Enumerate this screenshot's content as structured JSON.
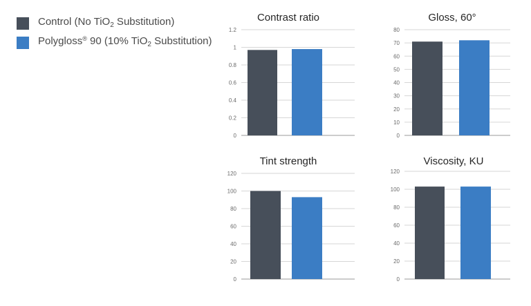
{
  "colors": {
    "control": "#474f5a",
    "polygloss": "#3b7dc4",
    "grid": "#d6d6d6",
    "axis": "#9a9a9a"
  },
  "legend": {
    "items": [
      {
        "pre": "Control (No TiO",
        "sub": "2",
        "post": " Substitution)",
        "color": "#474f5a"
      },
      {
        "pre": "Polygloss",
        "sup": "®",
        "mid": " 90 (10% TiO",
        "sub": "2",
        "post": " Substitution)",
        "color": "#3b7dc4"
      }
    ]
  },
  "chart_data": [
    {
      "type": "bar",
      "title": "Contrast ratio",
      "categories": [
        "Control",
        "Polygloss 90"
      ],
      "values": [
        0.97,
        0.98
      ],
      "ylim": [
        0,
        1.2
      ],
      "ticks": [
        "0",
        "0.2",
        "0.4",
        "0.6",
        "0.8",
        "1",
        "1.2"
      ],
      "tick_values": [
        0,
        0.2,
        0.4,
        0.6,
        0.8,
        1.0,
        1.2
      ],
      "grid": true
    },
    {
      "type": "bar",
      "title": "Gloss, 60°",
      "categories": [
        "Control",
        "Polygloss 90"
      ],
      "values": [
        71,
        72
      ],
      "ylim": [
        0,
        80
      ],
      "ticks": [
        "0",
        "10",
        "20",
        "30",
        "40",
        "50",
        "60",
        "70",
        "80"
      ],
      "tick_values": [
        0,
        10,
        20,
        30,
        40,
        50,
        60,
        70,
        80
      ],
      "grid": true
    },
    {
      "type": "bar",
      "title": "Tint strength",
      "categories": [
        "Control",
        "Polygloss 90"
      ],
      "values": [
        100,
        93
      ],
      "ylim": [
        0,
        120
      ],
      "ticks": [
        "0",
        "20",
        "40",
        "60",
        "80",
        "100",
        "120"
      ],
      "tick_values": [
        0,
        20,
        40,
        60,
        80,
        100,
        120
      ],
      "grid": true
    },
    {
      "type": "bar",
      "title": "Viscosity, KU",
      "categories": [
        "Control",
        "Polygloss 90"
      ],
      "values": [
        103,
        103
      ],
      "ylim": [
        0,
        120
      ],
      "ticks": [
        "0",
        "20",
        "40",
        "60",
        "80",
        "100",
        "120"
      ],
      "tick_values": [
        0,
        20,
        40,
        60,
        80,
        100,
        120
      ],
      "grid": true
    }
  ]
}
